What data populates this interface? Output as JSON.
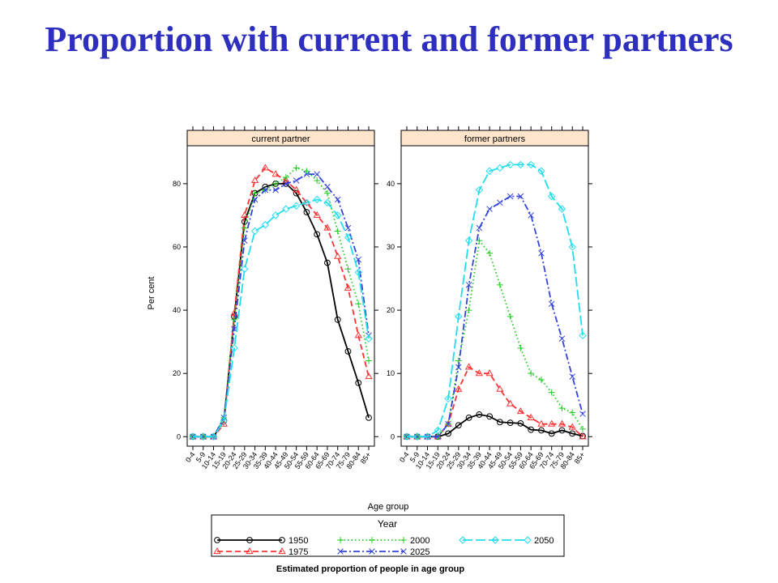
{
  "title": "Proportion with current and former partners",
  "chart_data": {
    "type": "line",
    "ylabel": "Per cent",
    "xlabel": "Age group",
    "legend_title": "Year",
    "caption": "Estimated proportion of people in age group",
    "categories": [
      "0-4",
      "5-9",
      "10-14",
      "15-19",
      "20-24",
      "25-29",
      "30-34",
      "35-39",
      "40-44",
      "45-49",
      "50-54",
      "55-59",
      "60-64",
      "65-69",
      "70-74",
      "75-79",
      "80-84",
      "85+"
    ],
    "series_style": [
      {
        "name": "1950",
        "color": "#000000",
        "dash": "",
        "marker": "circle"
      },
      {
        "name": "1975",
        "color": "#ff3333",
        "dash": "7,4",
        "marker": "triangle"
      },
      {
        "name": "2000",
        "color": "#22cc22",
        "dash": "1.5,3",
        "marker": "plus"
      },
      {
        "name": "2025",
        "color": "#3344dd",
        "dash": "8,3,2,3",
        "marker": "x"
      },
      {
        "name": "2050",
        "color": "#22ddee",
        "dash": "12,4",
        "marker": "diamond"
      }
    ],
    "panels": [
      {
        "strip": "current partner",
        "yticks": [
          0,
          20,
          40,
          60,
          80
        ],
        "ylim": [
          -3,
          92
        ],
        "series": [
          {
            "name": "1950",
            "values": [
              0,
              0,
              0,
              5,
              38,
              68,
              77,
              79,
              80,
              80,
              77,
              71,
              64,
              55,
              37,
              27,
              17,
              6
            ]
          },
          {
            "name": "1975",
            "values": [
              0,
              0,
              0,
              4,
              39,
              70,
              81,
              85,
              83,
              81,
              78,
              74,
              70,
              66,
              57,
              47,
              32,
              19
            ]
          },
          {
            "name": "2000",
            "values": [
              0,
              0,
              0,
              6,
              37,
              66,
              77,
              78,
              80,
              82,
              85,
              84,
              81,
              77,
              65,
              53,
              42,
              24
            ]
          },
          {
            "name": "2025",
            "values": [
              0,
              0,
              0,
              6,
              34,
              62,
              75,
              78,
              78,
              80,
              81,
              83,
              83,
              79,
              75,
              66,
              56,
              32
            ]
          },
          {
            "name": "2050",
            "values": [
              0,
              0,
              0,
              5,
              28,
              53,
              65,
              67,
              70,
              72,
              73,
              74,
              75,
              74,
              70,
              63,
              52,
              31
            ]
          }
        ]
      },
      {
        "strip": "former partners",
        "yticks": [
          0,
          10,
          20,
          30,
          40
        ],
        "ylim": [
          -1.5,
          46
        ],
        "series": [
          {
            "name": "1950",
            "values": [
              0,
              0,
              0,
              0,
              0.5,
              1.8,
              3,
              3.5,
              3.2,
              2.3,
              2.2,
              2.1,
              1.1,
              1.0,
              0.5,
              1.0,
              0.5,
              0.1
            ]
          },
          {
            "name": "1975",
            "values": [
              0,
              0,
              0,
              0,
              2,
              7.5,
              11,
              10,
              10,
              7.5,
              5.2,
              4,
              3,
              2,
              2,
              2,
              1.5,
              0
            ]
          },
          {
            "name": "2000",
            "values": [
              0,
              0,
              0,
              0,
              2,
              12,
              20,
              31,
              29,
              24,
              19,
              14,
              10,
              9,
              7,
              4.5,
              3.8,
              1.2
            ]
          },
          {
            "name": "2025",
            "values": [
              0,
              0,
              0,
              0,
              2,
              11,
              24,
              33,
              36,
              37,
              38,
              38,
              35,
              29,
              21,
              15.5,
              9.5,
              3.6
            ]
          },
          {
            "name": "2050",
            "values": [
              0,
              0,
              0,
              1,
              6,
              19,
              31,
              39,
              42,
              42.5,
              43,
              43,
              43,
              42,
              38,
              36,
              30,
              16
            ]
          }
        ]
      }
    ]
  }
}
